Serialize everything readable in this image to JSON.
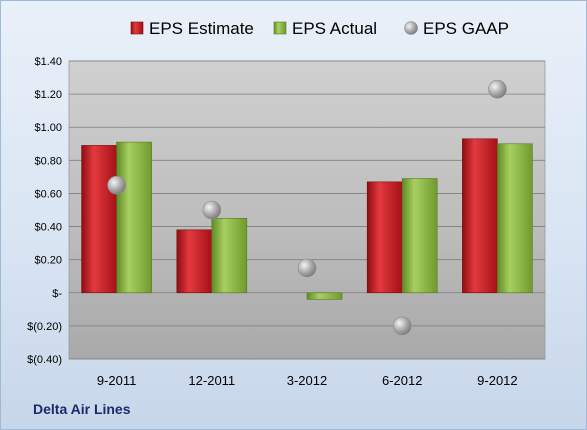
{
  "company": "Delta Air Lines",
  "chart_data": {
    "type": "bar",
    "categories": [
      "9-2011",
      "12-2011",
      "3-2012",
      "6-2012",
      "9-2012"
    ],
    "series": [
      {
        "name": "EPS Estimate",
        "kind": "bar",
        "color": "#c0141b",
        "values": [
          0.89,
          0.38,
          null,
          0.67,
          0.93
        ]
      },
      {
        "name": "EPS Actual",
        "kind": "bar",
        "color": "#7fae39",
        "values": [
          0.91,
          0.45,
          -0.04,
          0.69,
          0.9
        ]
      },
      {
        "name": "EPS GAAP",
        "kind": "scatter",
        "color": "#a8a8a8",
        "values": [
          0.65,
          0.5,
          0.15,
          -0.2,
          1.23
        ]
      }
    ],
    "ylim": [
      -0.4,
      1.4
    ],
    "yticks": [
      {
        "value": 1.4,
        "label": "$1.40"
      },
      {
        "value": 1.2,
        "label": "$1.20"
      },
      {
        "value": 1.0,
        "label": "$1.00"
      },
      {
        "value": 0.8,
        "label": "$0.80"
      },
      {
        "value": 0.6,
        "label": "$0.60"
      },
      {
        "value": 0.4,
        "label": "$0.40"
      },
      {
        "value": 0.2,
        "label": "$0.20"
      },
      {
        "value": 0.0,
        "label": "$-"
      },
      {
        "value": -0.2,
        "label": "$(0.20)"
      },
      {
        "value": -0.4,
        "label": "$(0.40)"
      }
    ],
    "grid": true,
    "legend_position": "top"
  }
}
